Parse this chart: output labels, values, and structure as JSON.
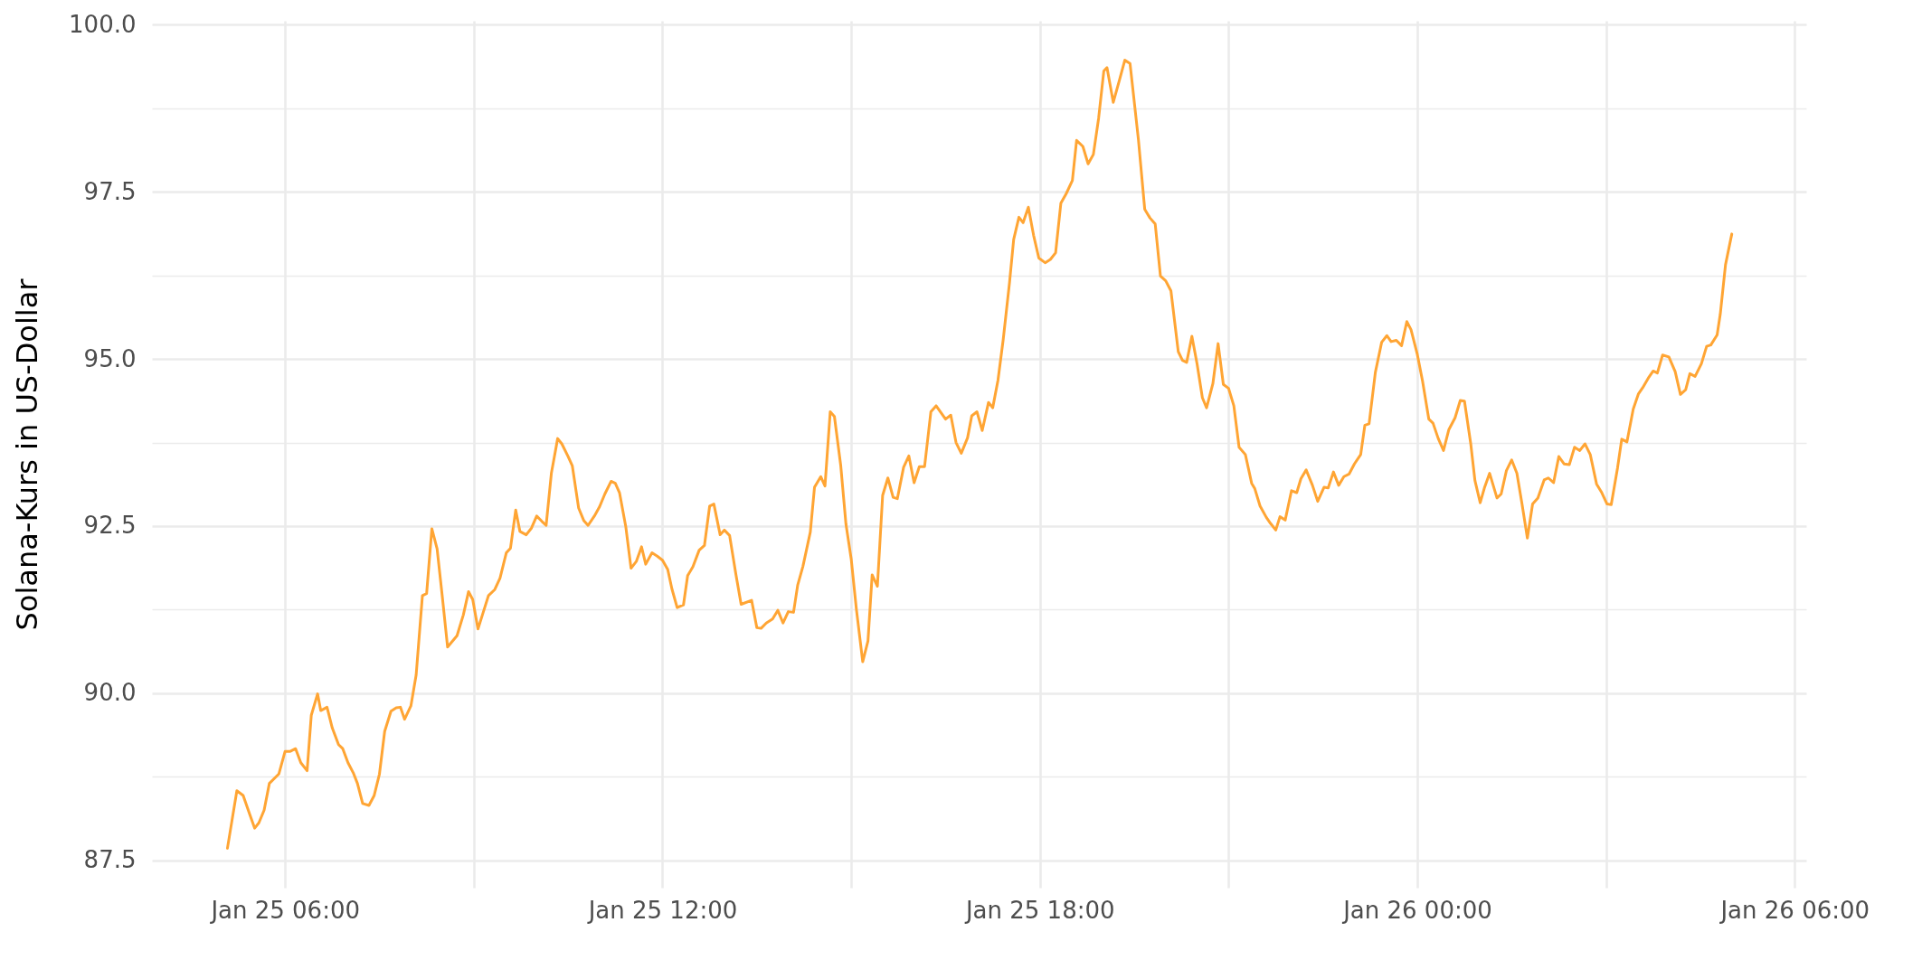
{
  "chart_data": {
    "type": "line",
    "ylabel": "Solana-Kurs in US-Dollar",
    "x": [
      "--01-25T05:05",
      "--01-25T05:14",
      "--01-25T05:20",
      "--01-25T05:26",
      "--01-25T05:31",
      "--01-25T05:35",
      "--01-25T05:40",
      "--01-25T05:45",
      "--01-25T05:54",
      "--01-25T06:00",
      "--01-25T06:05",
      "--01-25T06:10",
      "--01-25T06:15",
      "--01-25T06:21",
      "--01-25T06:25",
      "--01-25T06:31",
      "--01-25T06:34",
      "--01-25T06:40",
      "--01-25T06:45",
      "--01-25T06:51",
      "--01-25T06:55",
      "--01-25T07:00",
      "--01-25T07:05",
      "--01-25T07:09",
      "--01-25T07:14",
      "--01-25T07:20",
      "--01-25T07:25",
      "--01-25T07:30",
      "--01-25T07:35",
      "--01-25T07:41",
      "--01-25T07:46",
      "--01-25T07:50",
      "--01-25T07:54",
      "--01-25T08:00",
      "--01-25T08:05",
      "--01-25T08:11",
      "--01-25T08:15",
      "--01-25T08:20",
      "--01-25T08:25",
      "--01-25T08:30",
      "--01-25T08:35",
      "--01-25T08:44",
      "--01-25T08:50",
      "--01-25T08:55",
      "--01-25T08:59",
      "--01-25T09:04",
      "--01-25T09:09",
      "--01-25T09:14",
      "--01-25T09:20",
      "--01-25T09:25",
      "--01-25T09:31",
      "--01-25T09:35",
      "--01-25T09:40",
      "--01-25T09:44",
      "--01-25T09:50",
      "--01-25T09:55",
      "--01-25T10:00",
      "--01-25T10:05",
      "--01-25T10:09",
      "--01-25T10:14",
      "--01-25T10:20",
      "--01-25T10:24",
      "--01-25T10:30",
      "--01-25T10:34",
      "--01-25T10:40",
      "--01-25T10:45",
      "--01-25T10:49",
      "--01-25T10:55",
      "--01-25T11:00",
      "--01-25T11:05",
      "--01-25T11:11",
      "--01-25T11:15",
      "--01-25T11:19",
      "--01-25T11:25",
      "--01-25T11:30",
      "--01-25T11:35",
      "--01-25T11:40",
      "--01-25T11:44",
      "--01-25T11:50",
      "--01-25T11:55",
      "--01-25T12:00",
      "--01-25T12:05",
      "--01-25T12:09",
      "--01-25T12:14",
      "--01-25T12:20",
      "--01-25T12:24",
      "--01-25T12:29",
      "--01-25T12:35",
      "--01-25T12:40",
      "--01-25T12:45",
      "--01-25T12:49",
      "--01-25T12:55",
      "--01-25T12:59",
      "--01-25T13:04",
      "--01-25T13:10",
      "--01-25T13:15",
      "--01-25T13:25",
      "--01-25T13:30",
      "--01-25T13:34",
      "--01-25T13:39",
      "--01-25T13:45",
      "--01-25T13:50",
      "--01-25T13:55",
      "--01-25T14:00",
      "--01-25T14:05",
      "--01-25T14:09",
      "--01-25T14:14",
      "--01-25T14:21",
      "--01-25T14:25",
      "--01-25T14:31",
      "--01-25T14:35",
      "--01-25T14:40",
      "--01-25T14:44",
      "--01-25T14:50",
      "--01-25T14:55",
      "--01-25T15:00",
      "--01-25T15:05",
      "--01-25T15:11",
      "--01-25T15:16",
      "--01-25T15:20",
      "--01-25T15:25",
      "--01-25T15:30",
      "--01-25T15:35",
      "--01-25T15:40",
      "--01-25T15:44",
      "--01-25T15:50",
      "--01-25T15:55",
      "--01-25T16:00",
      "--01-25T16:05",
      "--01-25T16:10",
      "--01-25T16:16",
      "--01-25T16:21",
      "--01-25T16:30",
      "--01-25T16:35",
      "--01-25T16:40",
      "--01-25T16:45",
      "--01-25T16:51",
      "--01-25T16:55",
      "--01-25T17:00",
      "--01-25T17:05",
      "--01-25T17:11",
      "--01-25T17:15",
      "--01-25T17:20",
      "--01-25T17:25",
      "--01-25T17:31",
      "--01-25T17:35",
      "--01-25T17:40",
      "--01-25T17:44",
      "--01-25T17:49",
      "--01-25T17:54",
      "--01-25T17:59",
      "--01-25T18:05",
      "--01-25T18:10",
      "--01-25T18:15",
      "--01-25T18:20",
      "--01-25T18:25",
      "--01-25T18:31",
      "--01-25T18:35",
      "--01-25T18:41",
      "--01-25T18:46",
      "--01-25T18:51",
      "--01-25T18:56",
      "--01-25T19:01",
      "--01-25T19:04",
      "--01-25T19:10",
      "--01-25T19:16",
      "--01-25T19:21",
      "--01-25T19:26",
      "--01-25T19:34",
      "--01-25T19:40",
      "--01-25T19:45",
      "--01-25T19:50",
      "--01-25T19:55",
      "--01-25T20:00",
      "--01-25T20:05",
      "--01-25T20:12",
      "--01-25T20:16",
      "--01-25T20:20",
      "--01-25T20:25",
      "--01-25T20:30",
      "--01-25T20:35",
      "--01-25T20:39",
      "--01-25T20:45",
      "--01-25T20:50",
      "--01-25T20:55",
      "--01-25T21:00",
      "--01-25T21:05",
      "--01-25T21:10",
      "--01-25T21:16",
      "--01-25T21:22",
      "--01-25T21:25",
      "--01-25T21:30",
      "--01-25T21:36",
      "--01-25T21:40",
      "--01-25T21:45",
      "--01-25T21:49",
      "--01-25T21:54",
      "--01-25T22:00",
      "--01-25T22:05",
      "--01-25T22:09",
      "--01-25T22:14",
      "--01-25T22:20",
      "--01-25T22:25",
      "--01-25T22:31",
      "--01-25T22:35",
      "--01-25T22:40",
      "--01-25T22:45",
      "--01-25T22:50",
      "--01-25T22:55",
      "--01-25T23:00",
      "--01-25T23:06",
      "--01-25T23:10",
      "--01-25T23:14",
      "--01-25T23:20",
      "--01-25T23:26",
      "--01-25T23:31",
      "--01-25T23:35",
      "--01-25T23:40",
      "--01-25T23:45",
      "--01-25T23:50",
      "--01-25T23:54",
      "--01-26T00:00",
      "--01-26T00:05",
      "--01-26T00:11",
      "--01-26T00:15",
      "--01-26T00:20",
      "--01-26T00:25",
      "--01-26T00:30",
      "--01-26T00:36",
      "--01-26T00:41",
      "--01-26T00:45",
      "--01-26T00:51",
      "--01-26T00:55",
      "--01-26T01:00",
      "--01-26T01:04",
      "--01-26T01:09",
      "--01-26T01:16",
      "--01-26T01:20",
      "--01-26T01:25",
      "--01-26T01:30",
      "--01-26T01:35",
      "--01-26T01:40",
      "--01-26T01:45",
      "--01-26T01:50",
      "--01-26T01:55",
      "--01-26T02:01",
      "--01-26T02:05",
      "--01-26T02:10",
      "--01-26T02:15",
      "--01-26T02:20",
      "--01-26T02:25",
      "--01-26T02:30",
      "--01-26T02:35",
      "--01-26T02:40",
      "--01-26T02:45",
      "--01-26T02:51",
      "--01-26T02:56",
      "--01-26T03:01",
      "--01-26T03:05",
      "--01-26T03:11",
      "--01-26T03:15",
      "--01-26T03:20",
      "--01-26T03:26",
      "--01-26T03:31",
      "--01-26T03:35",
      "--01-26T03:41",
      "--01-26T03:45",
      "--01-26T03:49",
      "--01-26T03:54",
      "--01-26T04:00",
      "--01-26T04:06",
      "--01-26T04:11",
      "--01-26T04:16",
      "--01-26T04:20",
      "--01-26T04:25",
      "--01-26T04:31",
      "--01-26T04:36",
      "--01-26T04:40",
      "--01-26T04:46",
      "--01-26T04:49",
      "--01-26T04:54",
      "--01-26T05:00"
    ],
    "series": [
      {
        "color": "#ffa534",
        "values": [
          87.68,
          88.54,
          88.47,
          88.2,
          87.98,
          88.06,
          88.25,
          88.65,
          88.79,
          89.13,
          89.13,
          89.17,
          88.96,
          88.84,
          89.67,
          89.99,
          89.74,
          89.79,
          89.48,
          89.23,
          89.17,
          88.96,
          88.81,
          88.65,
          88.35,
          88.32,
          88.47,
          88.79,
          89.43,
          89.73,
          89.78,
          89.79,
          89.61,
          89.81,
          90.27,
          91.46,
          91.49,
          92.46,
          92.16,
          91.44,
          90.69,
          90.86,
          91.17,
          91.52,
          91.4,
          90.96,
          91.21,
          91.46,
          91.55,
          91.72,
          92.1,
          92.17,
          92.74,
          92.42,
          92.37,
          92.47,
          92.65,
          92.57,
          92.51,
          93.29,
          93.81,
          93.73,
          93.54,
          93.4,
          92.77,
          92.58,
          92.51,
          92.65,
          92.79,
          92.98,
          93.17,
          93.14,
          93.0,
          92.49,
          91.87,
          91.97,
          92.19,
          91.93,
          92.1,
          92.05,
          91.99,
          91.85,
          91.56,
          91.28,
          91.32,
          91.76,
          91.89,
          92.14,
          92.21,
          92.8,
          92.83,
          92.37,
          92.44,
          92.36,
          91.78,
          91.33,
          91.39,
          90.98,
          90.97,
          91.05,
          91.11,
          91.24,
          91.05,
          91.22,
          91.21,
          91.62,
          91.9,
          92.41,
          93.08,
          93.24,
          93.1,
          94.21,
          94.14,
          93.41,
          92.53,
          92.01,
          91.25,
          90.47,
          90.78,
          91.77,
          91.6,
          92.96,
          93.22,
          92.93,
          92.91,
          93.38,
          93.55,
          93.15,
          93.39,
          93.39,
          94.21,
          94.3,
          94.1,
          94.16,
          93.75,
          93.59,
          93.82,
          94.15,
          94.21,
          93.93,
          94.35,
          94.27,
          94.68,
          95.29,
          96.14,
          96.79,
          97.12,
          97.04,
          97.27,
          96.85,
          96.51,
          96.44,
          96.49,
          96.59,
          97.33,
          97.47,
          97.67,
          98.27,
          98.18,
          97.92,
          98.06,
          98.6,
          99.31,
          99.36,
          98.84,
          99.18,
          99.47,
          99.42,
          98.28,
          97.24,
          97.11,
          97.02,
          96.24,
          96.17,
          96.02,
          95.11,
          94.98,
          94.95,
          95.34,
          94.92,
          94.42,
          94.27,
          94.63,
          95.23,
          94.62,
          94.56,
          94.3,
          93.68,
          93.57,
          93.14,
          93.06,
          92.8,
          92.63,
          92.54,
          92.44,
          92.64,
          92.59,
          93.03,
          93.0,
          93.21,
          93.34,
          93.11,
          92.87,
          93.08,
          93.07,
          93.31,
          93.11,
          93.24,
          93.28,
          93.43,
          93.57,
          94.01,
          94.03,
          94.8,
          95.25,
          95.35,
          95.26,
          95.28,
          95.2,
          95.56,
          95.44,
          95.07,
          94.67,
          94.1,
          94.04,
          93.81,
          93.63,
          93.94,
          94.12,
          94.38,
          94.37,
          93.73,
          93.18,
          92.85,
          93.07,
          93.29,
          92.92,
          92.98,
          93.33,
          93.49,
          93.29,
          92.82,
          92.32,
          92.83,
          92.92,
          93.19,
          93.22,
          93.15,
          93.54,
          93.43,
          93.42,
          93.68,
          93.63,
          93.73,
          93.57,
          93.13,
          93.0,
          92.83,
          92.82,
          93.37,
          93.8,
          93.76,
          94.25,
          94.48,
          94.57,
          94.73,
          94.82,
          94.79,
          95.06,
          95.03,
          94.81,
          94.47,
          94.54,
          94.78,
          94.74,
          94.93,
          95.19,
          95.21,
          95.36,
          95.67,
          96.41,
          96.87
        ]
      }
    ],
    "xlim": [
      "--01-25T03:53",
      "--01-26T06:11"
    ],
    "xticks": [
      {
        "value": "--01-25T06:00",
        "label": "Jan 25 06:00"
      },
      {
        "value": "--01-25T09:00",
        "label": null
      },
      {
        "value": "--01-25T12:00",
        "label": "Jan 25 12:00"
      },
      {
        "value": "--01-25T15:00",
        "label": null
      },
      {
        "value": "--01-25T18:00",
        "label": "Jan 25 18:00"
      },
      {
        "value": "--01-25T21:00",
        "label": null
      },
      {
        "value": "--01-26T00:00",
        "label": "Jan 26 00:00"
      },
      {
        "value": "--01-26T03:00",
        "label": null
      },
      {
        "value": "--01-26T06:00",
        "label": "Jan 26 06:00"
      }
    ],
    "ylim": [
      87.09,
      100.06
    ],
    "yticks": [
      {
        "value": 87.5,
        "label": "87.5"
      },
      {
        "value": 88.75,
        "label": null
      },
      {
        "value": 90,
        "label": "90.0"
      },
      {
        "value": 91.25,
        "label": null
      },
      {
        "value": 92.5,
        "label": "92.5"
      },
      {
        "value": 93.75,
        "label": null
      },
      {
        "value": 95,
        "label": "95.0"
      },
      {
        "value": 96.25,
        "label": null
      },
      {
        "value": 97.5,
        "label": "97.5"
      },
      {
        "value": 98.75,
        "label": null
      },
      {
        "value": 100,
        "label": "100.0"
      }
    ],
    "grid": true
  }
}
